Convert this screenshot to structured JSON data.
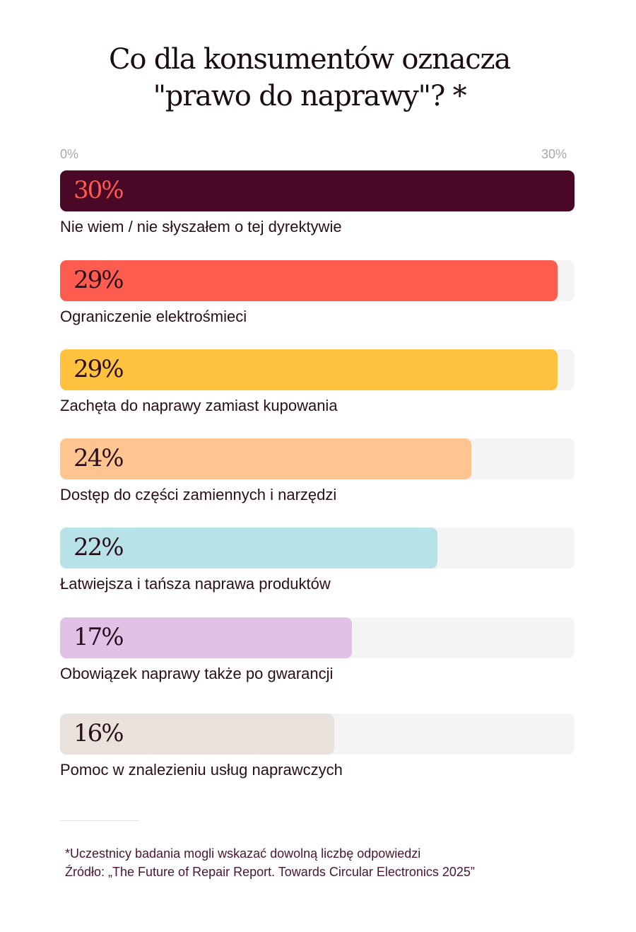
{
  "chart_data": {
    "type": "bar",
    "orientation": "horizontal",
    "title": "Co dla konsumentów oznacza \"prawo do naprawy\"? *",
    "title_lines": [
      "Co dla konsumentów oznacza",
      "\"prawo do naprawy\"? *"
    ],
    "axis": {
      "min_label": "0%",
      "max_label": "30%",
      "xlim": [
        0,
        30
      ]
    },
    "categories": [
      "Nie wiem / nie słyszałem o tej dyrektywie",
      "Ograniczenie elektrośmieci",
      "Zachęta do naprawy zamiast kupowania",
      "Dostęp do części zamiennych i narzędzi",
      "Łatwiejsza i tańsza naprawa produktów",
      "Obowiązek naprawy także po gwarancji",
      "Pomoc w znalezieniu usług naprawczych"
    ],
    "values": [
      30,
      29,
      29,
      24,
      22,
      17,
      16
    ],
    "value_labels": [
      "30%",
      "29%",
      "29%",
      "24%",
      "22%",
      "17%",
      "16%"
    ],
    "colors": [
      "#4a0726",
      "#ff5c50",
      "#ffc23e",
      "#ffc591",
      "#b7e3e8",
      "#dfc2e6",
      "#e9e2dc"
    ],
    "value_label_colors": [
      "#ff5c50",
      "#2a0f1a",
      "#2a0f1a",
      "#2a0f1a",
      "#2a0f1a",
      "#2a0f1a",
      "#2a0f1a"
    ],
    "grid": false,
    "legend": "none"
  },
  "footnotes": {
    "note": "*Uczestnicy badania mogli wskazać dowolną liczbę odpowiedzi",
    "source": "Źródło: „The Future of Repair Report. Towards Circular Electronics 2025”"
  }
}
